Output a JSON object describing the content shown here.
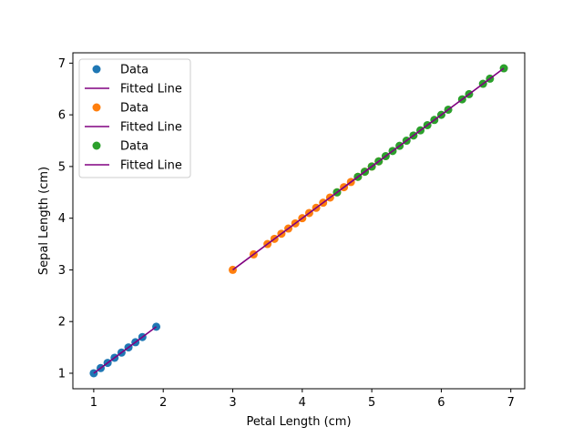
{
  "chart_data": {
    "type": "scatter",
    "xlabel": "Petal Length (cm)",
    "ylabel": "Sepal Length (cm)",
    "xlim": [
      0.7,
      7.2
    ],
    "ylim": [
      0.7,
      7.2
    ],
    "xticks": [
      1,
      2,
      3,
      4,
      5,
      6,
      7
    ],
    "yticks": [
      1,
      2,
      3,
      4,
      5,
      6,
      7
    ],
    "grid": false,
    "legend_position": "top-left",
    "groups": [
      {
        "color": "#1f77b4",
        "line_color": "#800080",
        "scatter_label": "Data",
        "line_label": "Fitted Line",
        "x": [
          1.0,
          1.1,
          1.2,
          1.3,
          1.4,
          1.5,
          1.6,
          1.7,
          1.9
        ],
        "y": [
          1.0,
          1.1,
          1.2,
          1.3,
          1.4,
          1.5,
          1.6,
          1.7,
          1.9
        ],
        "line": {
          "x": [
            1.0,
            1.9
          ],
          "y": [
            1.0,
            1.9
          ]
        }
      },
      {
        "color": "#ff7f0e",
        "line_color": "#800080",
        "scatter_label": "Data",
        "line_label": "Fitted Line",
        "x": [
          3.0,
          3.3,
          3.5,
          3.6,
          3.7,
          3.8,
          3.9,
          4.0,
          4.1,
          4.2,
          4.3,
          4.4,
          4.5,
          4.6,
          4.7,
          4.8,
          4.9,
          5.0,
          5.1
        ],
        "y": [
          3.0,
          3.3,
          3.5,
          3.6,
          3.7,
          3.8,
          3.9,
          4.0,
          4.1,
          4.2,
          4.3,
          4.4,
          4.5,
          4.6,
          4.7,
          4.8,
          4.9,
          5.0,
          5.1
        ],
        "line": {
          "x": [
            3.0,
            5.1
          ],
          "y": [
            3.0,
            5.1
          ]
        }
      },
      {
        "color": "#2ca02c",
        "line_color": "#800080",
        "scatter_label": "Data",
        "line_label": "Fitted Line",
        "x": [
          4.5,
          4.8,
          4.9,
          5.0,
          5.1,
          5.2,
          5.3,
          5.4,
          5.5,
          5.6,
          5.7,
          5.8,
          5.9,
          6.0,
          6.1,
          6.3,
          6.4,
          6.6,
          6.7,
          6.9
        ],
        "y": [
          4.5,
          4.8,
          4.9,
          5.0,
          5.1,
          5.2,
          5.3,
          5.4,
          5.5,
          5.6,
          5.7,
          5.8,
          5.9,
          6.0,
          6.1,
          6.3,
          6.4,
          6.6,
          6.7,
          6.9
        ],
        "line": {
          "x": [
            4.5,
            6.9
          ],
          "y": [
            4.5,
            6.9
          ]
        }
      }
    ]
  }
}
